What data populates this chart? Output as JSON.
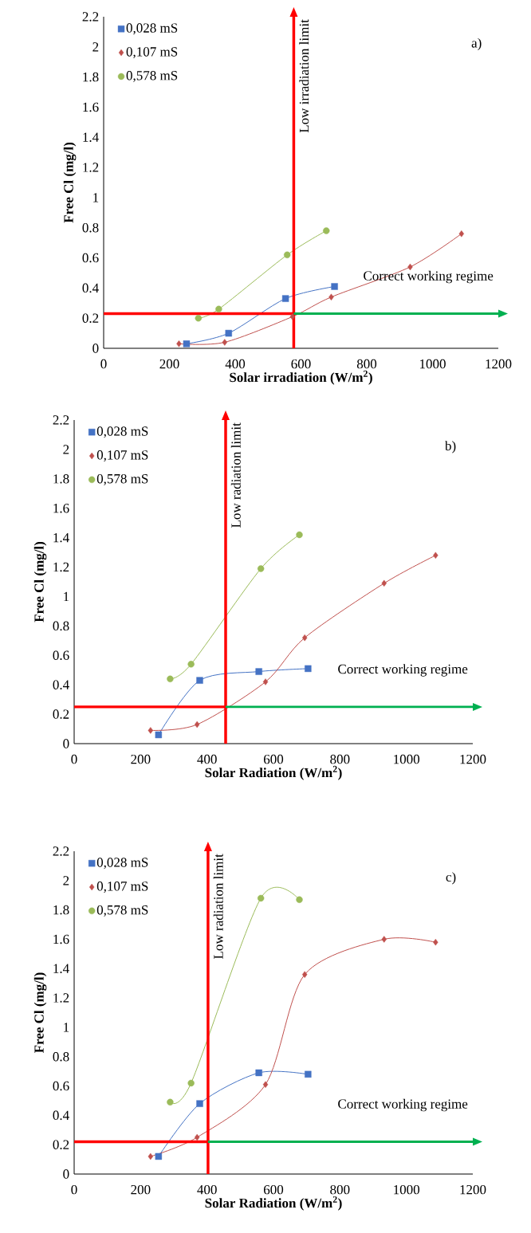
{
  "chart_data": [
    {
      "type": "line",
      "annotations": [
        "a)"
      ],
      "xlabel": "Solar irradiation (W/m$^{2}$)",
      "ylabel": "Free Cl (mg/l)",
      "xlim": [
        0,
        1200
      ],
      "xticks": [
        0,
        200,
        400,
        600,
        800,
        1000,
        1200
      ],
      "ylim": [
        0,
        2.2
      ],
      "yticks": [
        0,
        0.2,
        0.4,
        0.6,
        0.8,
        1,
        1.2,
        1.4,
        1.6,
        1.8,
        2,
        2.2
      ],
      "legend": "top left",
      "series": [
        {
          "name": "0,028 mS",
          "color": "#4472c4",
          "marker": "square",
          "x": [
            252,
            380,
            553,
            702
          ],
          "values": [
            0.03,
            0.1,
            0.33,
            0.41
          ]
        },
        {
          "name": "0,107 mS",
          "color": "#c0504d",
          "marker": "diamond",
          "x": [
            229,
            368,
            574,
            692,
            932,
            1088
          ],
          "values": [
            0.03,
            0.04,
            0.21,
            0.34,
            0.54,
            0.76
          ]
        },
        {
          "name": "0,578 mS",
          "color": "#9bbb59",
          "marker": "circle",
          "x": [
            288,
            350,
            558,
            677
          ],
          "values": [
            0.2,
            0.26,
            0.62,
            0.78
          ]
        }
      ],
      "ref_lines": [
        {
          "axis": "x",
          "value": 578,
          "label": "Low irradiation limit",
          "color": "#ff0000"
        },
        {
          "axis": "y",
          "value": 0.23,
          "color": "#ff0000"
        },
        {
          "axis": "y",
          "value": 0.23,
          "label": "Correct working regime",
          "color": "#00b050"
        }
      ]
    },
    {
      "type": "line",
      "annotations": [
        "b)"
      ],
      "xlabel": "Solar Radiation (W/m$^{2}$)",
      "ylabel": "Free Cl (mg/l)",
      "xlim": [
        0,
        1200
      ],
      "xticks": [
        0,
        200,
        400,
        600,
        800,
        1000,
        1200
      ],
      "ylim": [
        0,
        2.2
      ],
      "yticks": [
        0,
        0.2,
        0.4,
        0.6,
        0.8,
        1,
        1.2,
        1.4,
        1.6,
        1.8,
        2,
        2.2
      ],
      "legend": "top left",
      "series": [
        {
          "name": "0,028 mS",
          "color": "#4472c4",
          "marker": "square",
          "x": [
            254,
            378,
            556,
            704
          ],
          "values": [
            0.06,
            0.43,
            0.49,
            0.51
          ]
        },
        {
          "name": "0,107 mS",
          "color": "#c0504d",
          "marker": "diamond",
          "x": [
            230,
            370,
            576,
            694,
            933,
            1088
          ],
          "values": [
            0.09,
            0.13,
            0.42,
            0.72,
            1.09,
            1.28
          ]
        },
        {
          "name": "0,578 mS",
          "color": "#9bbb59",
          "marker": "circle",
          "x": [
            289,
            352,
            562,
            678
          ],
          "values": [
            0.44,
            0.54,
            1.19,
            1.42
          ]
        }
      ],
      "ref_lines": [
        {
          "axis": "x",
          "value": 456,
          "label": "Low radiation limit",
          "color": "#ff0000"
        },
        {
          "axis": "y",
          "value": 0.25,
          "color": "#ff0000"
        },
        {
          "axis": "y",
          "value": 0.25,
          "label": "Correct working regime",
          "color": "#00b050"
        }
      ]
    },
    {
      "type": "line",
      "annotations": [
        "c)"
      ],
      "xlabel": "Solar Radiation (W/m$^{2}$)",
      "ylabel": "Free Cl (mg/l)",
      "xlim": [
        0,
        1200
      ],
      "xticks": [
        0,
        200,
        400,
        600,
        800,
        1000,
        1200
      ],
      "ylim": [
        0,
        2.2
      ],
      "yticks": [
        0,
        0.2,
        0.4,
        0.6,
        0.8,
        1,
        1.2,
        1.4,
        1.6,
        1.8,
        2,
        2.2
      ],
      "legend": "top left",
      "series": [
        {
          "name": "0,028 mS",
          "color": "#4472c4",
          "marker": "square",
          "x": [
            254,
            378,
            556,
            704
          ],
          "values": [
            0.12,
            0.48,
            0.69,
            0.68
          ]
        },
        {
          "name": "0,107 mS",
          "color": "#c0504d",
          "marker": "diamond",
          "x": [
            230,
            370,
            576,
            694,
            933,
            1088
          ],
          "values": [
            0.12,
            0.25,
            0.61,
            1.36,
            1.6,
            1.58
          ]
        },
        {
          "name": "0,578 mS",
          "color": "#9bbb59",
          "marker": "circle",
          "x": [
            289,
            352,
            562,
            678
          ],
          "values": [
            0.49,
            0.62,
            1.88,
            1.87
          ]
        }
      ],
      "ref_lines": [
        {
          "axis": "x",
          "value": 403,
          "label": "Low radiation limit",
          "color": "#ff0000"
        },
        {
          "axis": "y",
          "value": 0.22,
          "color": "#ff0000"
        },
        {
          "axis": "y",
          "value": 0.22,
          "label": "Correct working regime",
          "color": "#00b050"
        }
      ]
    }
  ]
}
